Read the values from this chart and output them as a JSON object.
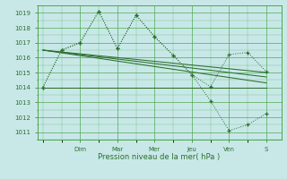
{
  "bg_color": "#c8e8e8",
  "grid_color": "#4da64d",
  "line_color": "#2d6e2d",
  "ylim": [
    1010.5,
    1019.5
  ],
  "yticks": [
    1011,
    1012,
    1013,
    1014,
    1015,
    1016,
    1017,
    1018,
    1019
  ],
  "xlabel": "Pression niveau de la mer( hPa )",
  "day_labels": [
    "Dim",
    "Mar",
    "Mer",
    "Jeu",
    "Ven",
    "S"
  ],
  "day_positions": [
    2.0,
    4.0,
    6.0,
    8.0,
    10.0,
    12.0
  ],
  "xlim": [
    -0.3,
    12.8
  ],
  "series_dotted1": [
    [
      0.0,
      1014.0
    ],
    [
      1.0,
      1016.5
    ],
    [
      2.0,
      1017.0
    ],
    [
      3.0,
      1019.1
    ],
    [
      4.0,
      1016.6
    ],
    [
      5.0,
      1018.85
    ],
    [
      6.0,
      1017.4
    ],
    [
      7.0,
      1016.15
    ],
    [
      8.0,
      1014.85
    ],
    [
      9.0,
      1014.05
    ],
    [
      10.0,
      1016.2
    ],
    [
      11.0,
      1016.35
    ],
    [
      12.0,
      1015.05
    ]
  ],
  "series_dotted2": [
    [
      0.0,
      1014.0
    ],
    [
      1.0,
      1016.5
    ],
    [
      2.0,
      1017.0
    ],
    [
      3.0,
      1019.1
    ],
    [
      4.0,
      1016.6
    ],
    [
      5.0,
      1018.85
    ],
    [
      6.0,
      1017.4
    ],
    [
      7.0,
      1016.15
    ],
    [
      8.0,
      1014.85
    ],
    [
      9.0,
      1013.1
    ],
    [
      10.0,
      1011.1
    ],
    [
      11.0,
      1011.5
    ],
    [
      12.0,
      1012.25
    ]
  ],
  "series_solid1": [
    [
      0.0,
      1014.0
    ],
    [
      12.0,
      1014.0
    ]
  ],
  "series_solid2": [
    [
      0.0,
      1016.5
    ],
    [
      12.0,
      1015.0
    ]
  ],
  "series_solid3": [
    [
      0.0,
      1016.5
    ],
    [
      12.0,
      1014.7
    ]
  ],
  "series_solid4": [
    [
      0.0,
      1016.5
    ],
    [
      12.0,
      1014.3
    ]
  ]
}
